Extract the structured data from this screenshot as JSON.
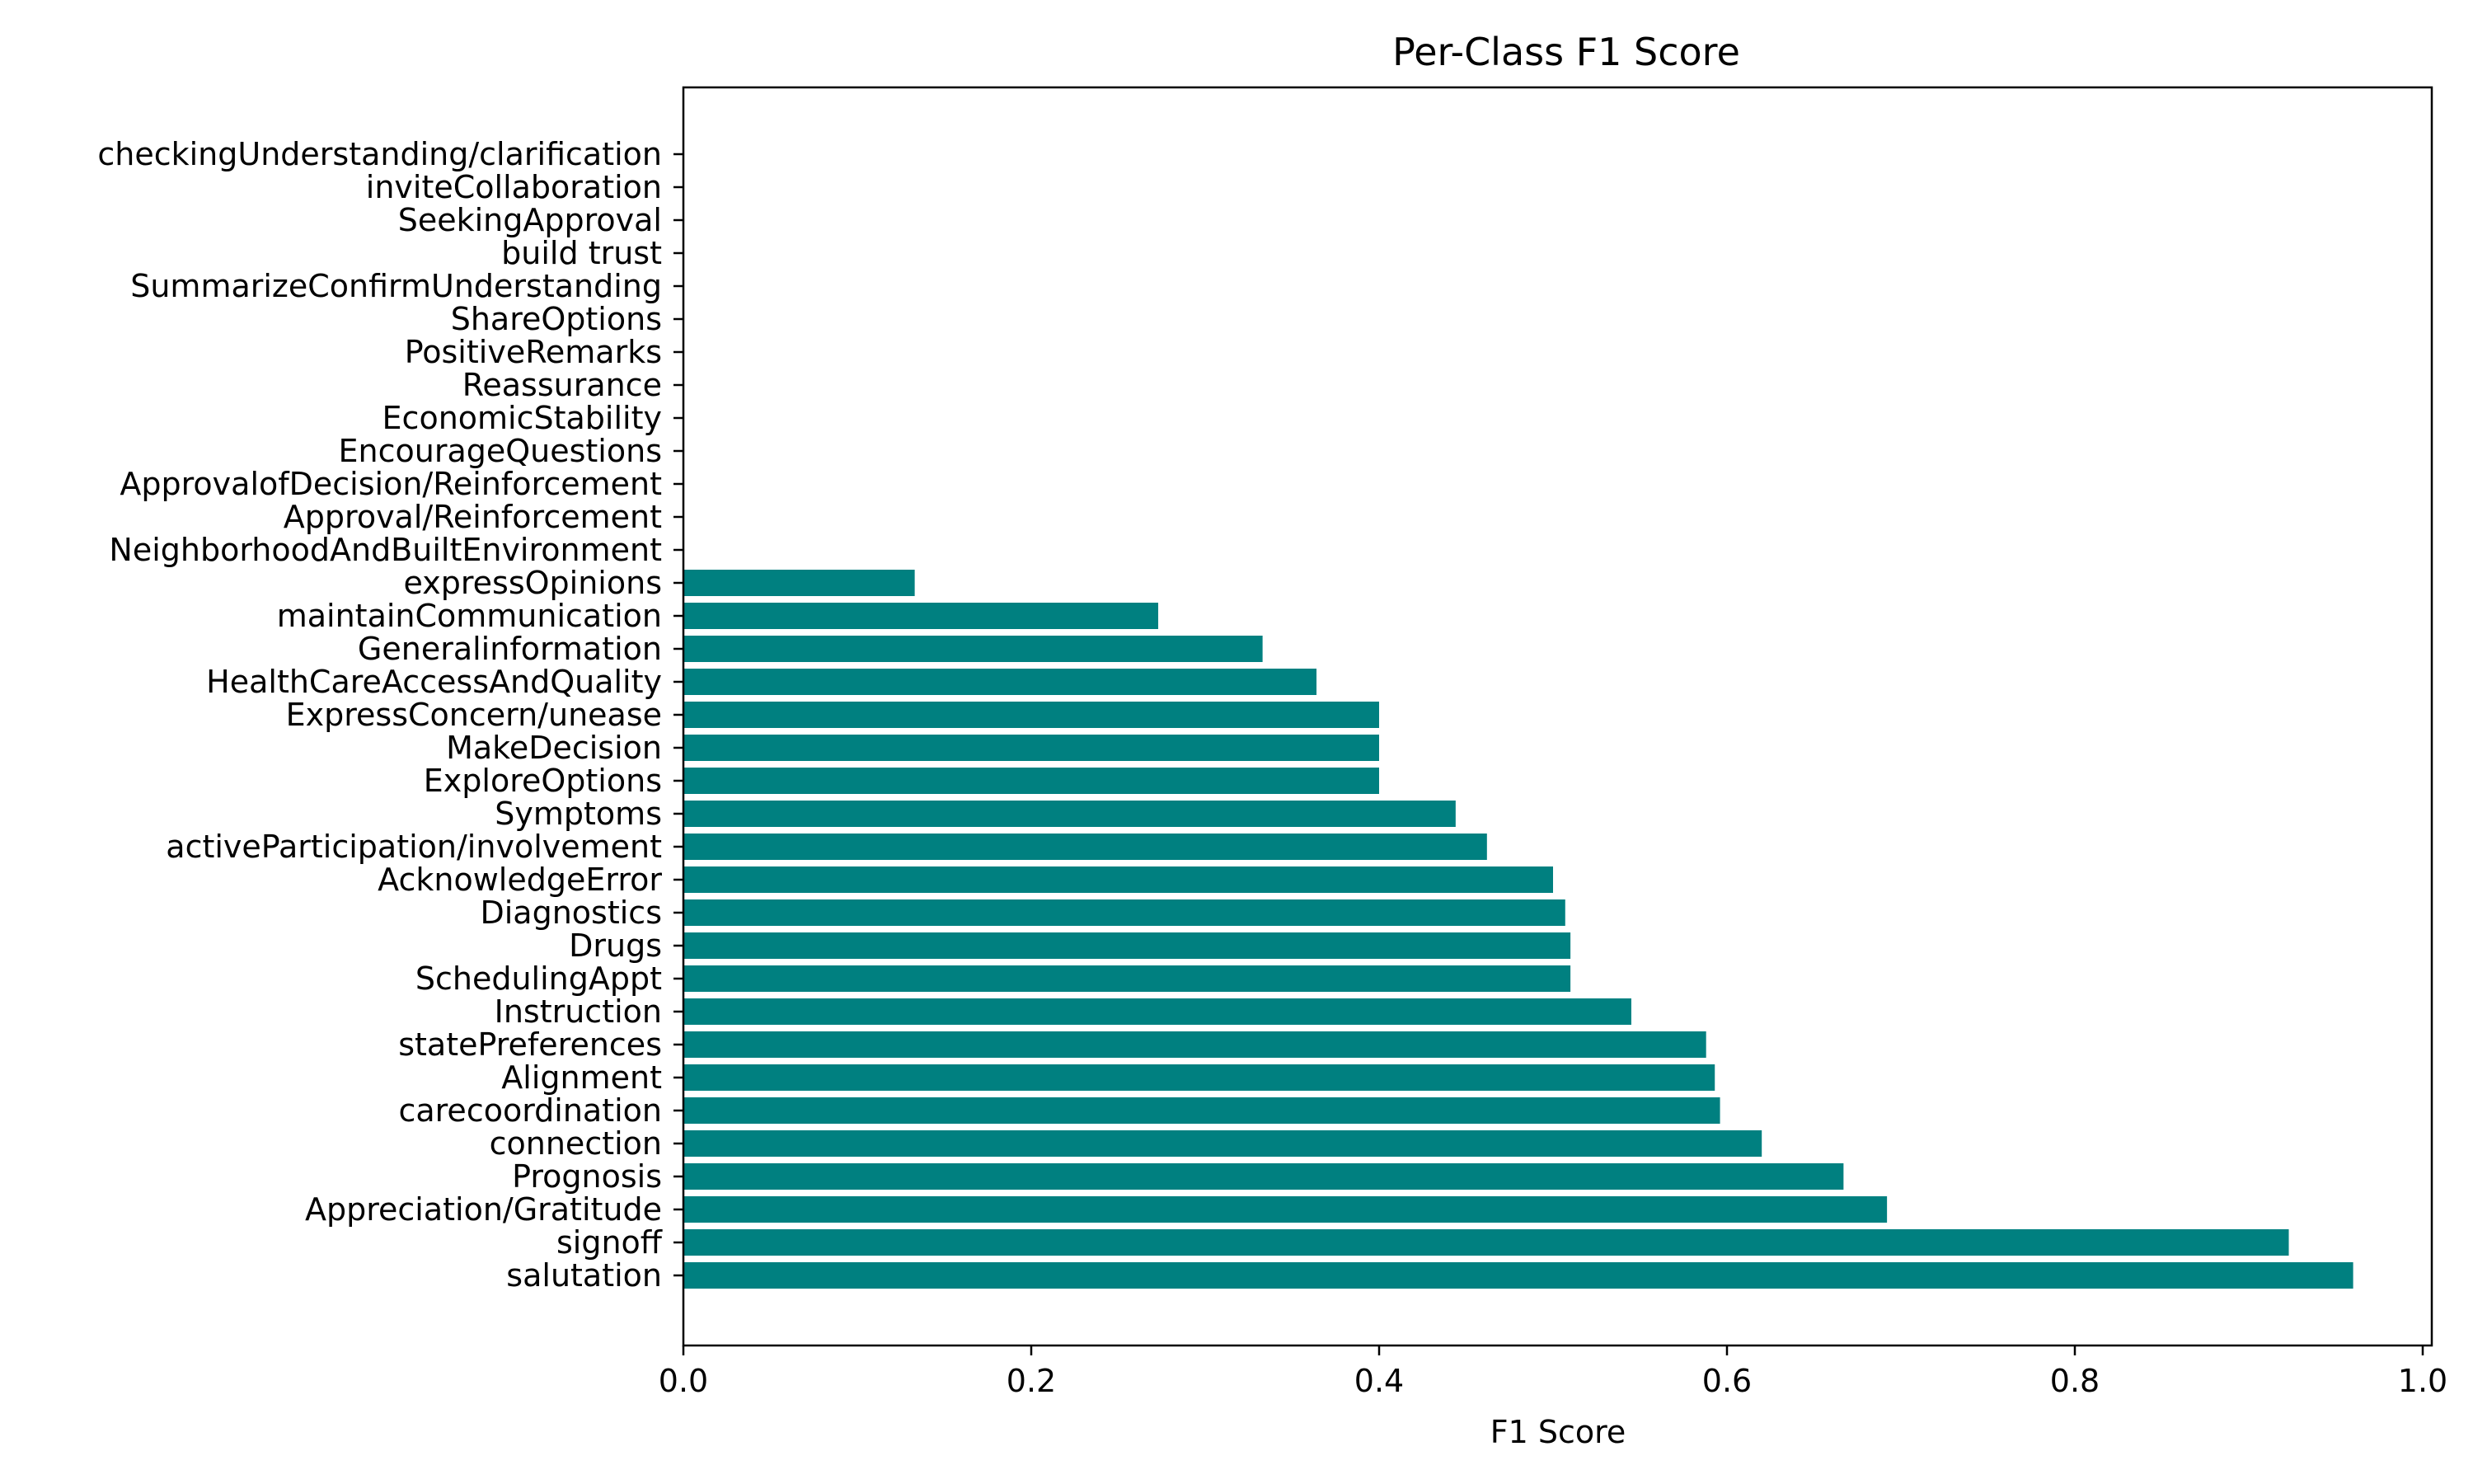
{
  "chart_data": {
    "type": "bar",
    "orientation": "horizontal",
    "title": "Per-Class F1 Score",
    "xlabel": "F1 Score",
    "ylabel": "",
    "xlim": [
      0.0,
      1.0
    ],
    "xticks": [
      "0.0",
      "0.2",
      "0.4",
      "0.6",
      "0.8",
      "1.0"
    ],
    "grid": false,
    "bar_color": "#008080",
    "categories": [
      "salutation",
      "signoff",
      "Appreciation/Gratitude",
      "Prognosis",
      "connection",
      "carecoordination",
      "Alignment",
      "statePreferences",
      "Instruction",
      "SchedulingAppt",
      "Drugs",
      "Diagnostics",
      "AcknowledgeError",
      "activeParticipation/involvement",
      "Symptoms",
      "ExploreOptions",
      "MakeDecision",
      "ExpressConcern/unease",
      "HealthCareAccessAndQuality",
      "Generalinformation",
      "maintainCommunication",
      "expressOpinions",
      "NeighborhoodAndBuiltEnvironment",
      "Approval/Reinforcement",
      "ApprovalofDecision/Reinforcement",
      "EncourageQuestions",
      "EconomicStability",
      "Reassurance",
      "PositiveRemarks",
      "ShareOptions",
      "SummarizeConfirmUnderstanding",
      "build trust",
      "SeekingApproval",
      "inviteCollaboration",
      "checkingUnderstanding/clarification"
    ],
    "values": [
      0.96,
      0.923,
      0.692,
      0.667,
      0.62,
      0.596,
      0.593,
      0.588,
      0.545,
      0.51,
      0.51,
      0.507,
      0.5,
      0.462,
      0.444,
      0.4,
      0.4,
      0.4,
      0.364,
      0.333,
      0.273,
      0.133,
      0,
      0,
      0,
      0,
      0,
      0,
      0,
      0,
      0,
      0,
      0,
      0,
      0
    ]
  }
}
